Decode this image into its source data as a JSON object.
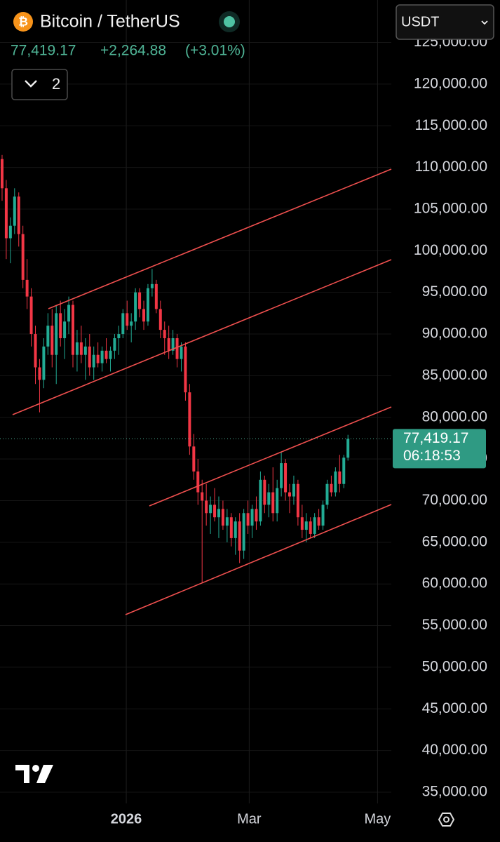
{
  "chart_data": {
    "type": "candlestick",
    "symbol": "Bitcoin / TetherUS",
    "last_price": {
      "value": 77419.17,
      "label": "77,419.17"
    },
    "change": "+2,264.88",
    "change_pct": "(+3.01%)",
    "indicator_count": "2",
    "currency": "USDT",
    "countdown": "06:18:53",
    "up_color": "#22ab94",
    "down_color": "#f23645",
    "grid": true,
    "xlim": [
      -0.5,
      93.4
    ],
    "xticks": [
      {
        "value": 29.8,
        "label": "2026"
      },
      {
        "value": 59.3,
        "label": "Mar"
      },
      {
        "value": 90.1,
        "label": "May"
      }
    ],
    "ylim": [
      33650,
      130100
    ],
    "yticks": [
      {
        "value": 35000,
        "label": "35,000.00"
      },
      {
        "value": 40000,
        "label": "40,000.00"
      },
      {
        "value": 45000,
        "label": "45,000.00"
      },
      {
        "value": 50000,
        "label": "50,000.00"
      },
      {
        "value": 55000,
        "label": "55,000.00"
      },
      {
        "value": 60000,
        "label": "60,000.00"
      },
      {
        "value": 65000,
        "label": "65,000.00"
      },
      {
        "value": 70000,
        "label": "70,000.00"
      },
      {
        "value": 75000,
        "label": "75,000.00"
      },
      {
        "value": 80000,
        "label": "80,000.00"
      },
      {
        "value": 85000,
        "label": "85,000.00"
      },
      {
        "value": 90000,
        "label": "90,000.00"
      },
      {
        "value": 95000,
        "label": "95,000.00"
      },
      {
        "value": 100000,
        "label": "100,000.00"
      },
      {
        "value": 105000,
        "label": "105,000.00"
      },
      {
        "value": 110000,
        "label": "110,000.00"
      },
      {
        "value": 115000,
        "label": "115,000.00"
      },
      {
        "value": 120000,
        "label": "120,000.00"
      },
      {
        "value": 125000,
        "label": "125,000.00"
      }
    ],
    "open": [
      111000,
      107500,
      101500,
      103000,
      106500,
      102000,
      96500,
      94500,
      90000,
      86000,
      84500,
      88500,
      91000,
      87500,
      92500,
      89500,
      91500,
      93500,
      87500,
      89000,
      87500,
      88500,
      86000,
      87500,
      86500,
      88000,
      87000,
      88000,
      89500,
      90000,
      92500,
      91000,
      91500,
      95000,
      93000,
      91500,
      95500,
      96000,
      93000,
      90500,
      89500,
      88000,
      89500,
      87000,
      88500,
      83000,
      76500,
      73500,
      71000,
      70000,
      68500,
      69500,
      68000,
      69000,
      67000,
      68000,
      65500,
      67500,
      64000,
      68500,
      67000,
      69000,
      67500,
      72500,
      69500,
      71000,
      68500,
      71500,
      74500,
      71000,
      70500,
      72000,
      68000,
      66500,
      67500,
      66000,
      68000,
      67000,
      69500,
      72000,
      71000,
      73500,
      72000,
      75154.29
    ],
    "high": [
      111500,
      108500,
      104000,
      107500,
      107000,
      103000,
      99000,
      95500,
      91000,
      87000,
      89500,
      92500,
      93000,
      93500,
      94000,
      93000,
      94500,
      94000,
      90500,
      91000,
      89500,
      90000,
      88500,
      89000,
      88500,
      89500,
      88500,
      90000,
      91000,
      93000,
      94000,
      92500,
      95500,
      95500,
      94000,
      96000,
      97800,
      96500,
      94000,
      91500,
      91000,
      90500,
      90000,
      89000,
      89000,
      84000,
      78000,
      75000,
      72500,
      72000,
      70500,
      71500,
      70500,
      70000,
      69000,
      68500,
      68000,
      68500,
      69000,
      70000,
      69500,
      70500,
      73500,
      73000,
      72000,
      74000,
      72500,
      75800,
      75000,
      72000,
      73000,
      72500,
      69500,
      68500,
      68000,
      68500,
      69000,
      70000,
      72500,
      73000,
      74000,
      75500,
      75500,
      77900
    ],
    "low": [
      106000,
      99000,
      98500,
      102000,
      100500,
      95500,
      93000,
      88500,
      84000,
      80600,
      83500,
      87500,
      86000,
      84000,
      88500,
      87000,
      90000,
      86000,
      85500,
      86500,
      84500,
      85000,
      84500,
      86000,
      85500,
      86500,
      85500,
      87000,
      87500,
      89500,
      90500,
      89000,
      90500,
      92000,
      90500,
      91000,
      94500,
      92500,
      89500,
      87500,
      87000,
      87500,
      86000,
      85500,
      82000,
      75500,
      72500,
      69500,
      60200,
      67000,
      66000,
      67500,
      65500,
      66500,
      65000,
      64500,
      63500,
      62500,
      63000,
      66000,
      65500,
      66500,
      67000,
      68500,
      68000,
      67500,
      67500,
      70500,
      70000,
      68500,
      69500,
      67000,
      65500,
      65000,
      65500,
      65500,
      66500,
      66500,
      69000,
      70500,
      70500,
      71000,
      71500,
      74800
    ],
    "close": [
      107500,
      101500,
      103000,
      106500,
      102000,
      96500,
      94500,
      90000,
      86000,
      84500,
      88500,
      91000,
      87500,
      92500,
      89500,
      91500,
      93500,
      87500,
      89000,
      87500,
      88500,
      86000,
      87500,
      86500,
      88000,
      87000,
      88000,
      89500,
      90000,
      92500,
      91000,
      91500,
      95000,
      93000,
      91500,
      95500,
      96000,
      93000,
      90500,
      89500,
      88000,
      89500,
      87000,
      88500,
      83000,
      76500,
      73500,
      71000,
      70000,
      68500,
      69500,
      68000,
      69000,
      67000,
      68000,
      65500,
      67500,
      64000,
      68500,
      67000,
      69000,
      67500,
      72500,
      69500,
      71000,
      68500,
      71500,
      74500,
      71000,
      70500,
      72000,
      68000,
      66500,
      67500,
      66000,
      68000,
      67000,
      69500,
      72000,
      71000,
      73500,
      72000,
      75154.29,
      77419.17
    ]
  }
}
